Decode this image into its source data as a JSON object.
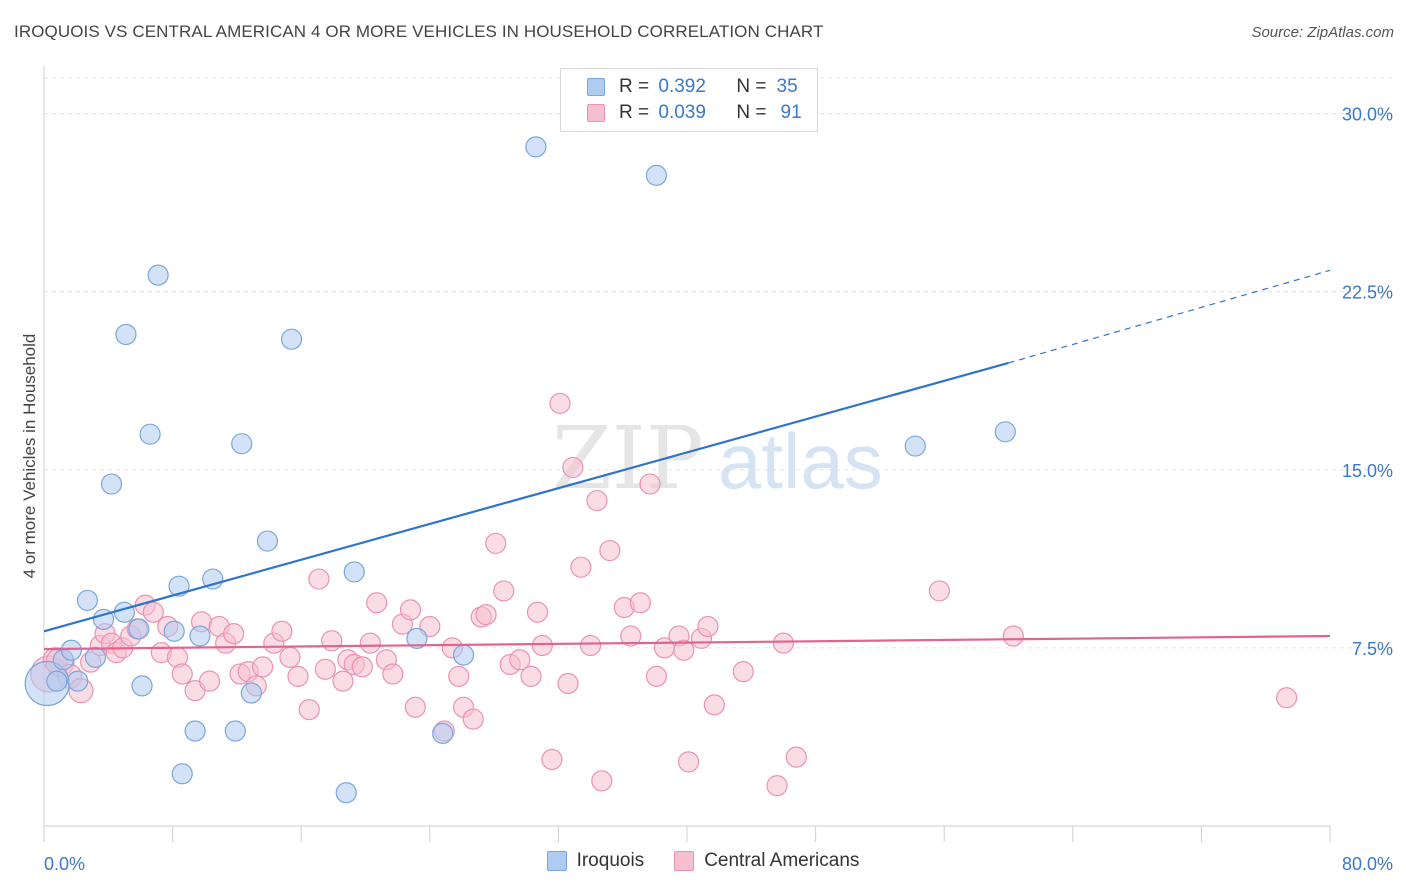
{
  "header": {
    "title": "IROQUOIS VS CENTRAL AMERICAN 4 OR MORE VEHICLES IN HOUSEHOLD CORRELATION CHART",
    "source": "Source: ZipAtlas.com"
  },
  "watermark": {
    "zip": "ZIP",
    "atlas": "atlas"
  },
  "legend": {
    "iroquois": {
      "r_label": "R =",
      "r_value": "0.392",
      "n_label": "N =",
      "n_value": "35"
    },
    "central": {
      "r_label": "R =",
      "r_value": "0.039",
      "n_label": "N =",
      "n_value": "91"
    }
  },
  "colors": {
    "iroquois_fill": "#aecbf0",
    "iroquois_stroke": "#7aa6dc",
    "iroquois_line": "#2f74c8",
    "central_fill": "#f6bfd0",
    "central_stroke": "#ea93b0",
    "central_line": "#e0648f",
    "tick_label": "#3a78c9",
    "grid": "#e3e3e3"
  },
  "chart_data": {
    "type": "scatter",
    "title": "IROQUOIS VS CENTRAL AMERICAN 4 OR MORE VEHICLES IN HOUSEHOLD CORRELATION CHART",
    "xlabel": "",
    "ylabel": "4 or more Vehicles in Household",
    "xlim": [
      0,
      80
    ],
    "ylim": [
      0,
      31.5
    ],
    "x_tick_labels": [
      "0.0%",
      "80.0%"
    ],
    "y_ticks": [
      7.5,
      15.0,
      22.5,
      30.0
    ],
    "y_tick_labels": [
      "7.5%",
      "15.0%",
      "22.5%",
      "30.0%"
    ],
    "grid": "horizontal dashed",
    "legend_position": "top-center and bottom",
    "series": [
      {
        "name": "Iroquois",
        "r": 0.392,
        "n": 35,
        "trend": {
          "x0": 0,
          "y0": 8.2,
          "x1": 60,
          "y1": 19.5,
          "dashed_to_x": 80,
          "dashed_to_y": 23.4
        },
        "points": [
          [
            0.2,
            6.0,
            22
          ],
          [
            0.8,
            6.1,
            10
          ],
          [
            1.2,
            7.0,
            10
          ],
          [
            1.7,
            7.4,
            10
          ],
          [
            2.1,
            6.1,
            10
          ],
          [
            2.7,
            9.5,
            10
          ],
          [
            3.2,
            7.1,
            10
          ],
          [
            3.7,
            8.7,
            10
          ],
          [
            4.2,
            14.4,
            10
          ],
          [
            5.0,
            9.0,
            10
          ],
          [
            5.1,
            20.7,
            10
          ],
          [
            5.9,
            8.3,
            10
          ],
          [
            6.1,
            5.9,
            10
          ],
          [
            6.6,
            16.5,
            10
          ],
          [
            7.1,
            23.2,
            10
          ],
          [
            8.1,
            8.2,
            10
          ],
          [
            8.4,
            10.1,
            10
          ],
          [
            8.6,
            2.2,
            10
          ],
          [
            9.4,
            4.0,
            10
          ],
          [
            9.7,
            8.0,
            10
          ],
          [
            10.5,
            10.4,
            10
          ],
          [
            11.9,
            4.0,
            10
          ],
          [
            12.3,
            16.1,
            10
          ],
          [
            12.9,
            5.6,
            10
          ],
          [
            13.9,
            12.0,
            10
          ],
          [
            15.4,
            20.5,
            10
          ],
          [
            18.8,
            1.4,
            10
          ],
          [
            19.3,
            10.7,
            10
          ],
          [
            23.2,
            7.9,
            10
          ],
          [
            24.8,
            3.9,
            10
          ],
          [
            26.1,
            7.2,
            10
          ],
          [
            30.6,
            28.6,
            10
          ],
          [
            38.1,
            27.4,
            10
          ],
          [
            54.2,
            16.0,
            10
          ],
          [
            59.8,
            16.6,
            10
          ]
        ]
      },
      {
        "name": "Central Americans",
        "r": 0.039,
        "n": 91,
        "trend": {
          "x0": 0,
          "y0": 7.45,
          "x1": 80,
          "y1": 8.0
        },
        "points": [
          [
            0.3,
            6.4,
            18
          ],
          [
            0.7,
            7.0,
            12
          ],
          [
            1.0,
            6.9,
            14
          ],
          [
            1.6,
            6.3,
            12
          ],
          [
            2.3,
            5.7,
            12
          ],
          [
            2.9,
            6.9,
            10
          ],
          [
            3.5,
            7.6,
            10
          ],
          [
            3.8,
            8.1,
            10
          ],
          [
            4.2,
            7.7,
            10
          ],
          [
            4.5,
            7.3,
            10
          ],
          [
            4.9,
            7.5,
            10
          ],
          [
            5.4,
            8.0,
            10
          ],
          [
            5.8,
            8.3,
            10
          ],
          [
            6.3,
            9.3,
            10
          ],
          [
            6.8,
            9.0,
            10
          ],
          [
            7.3,
            7.3,
            10
          ],
          [
            7.7,
            8.4,
            10
          ],
          [
            8.3,
            7.1,
            10
          ],
          [
            8.6,
            6.4,
            10
          ],
          [
            9.4,
            5.7,
            10
          ],
          [
            9.8,
            8.6,
            10
          ],
          [
            10.3,
            6.1,
            10
          ],
          [
            10.9,
            8.4,
            10
          ],
          [
            11.3,
            7.7,
            10
          ],
          [
            11.8,
            8.1,
            10
          ],
          [
            12.2,
            6.4,
            10
          ],
          [
            12.7,
            6.5,
            10
          ],
          [
            13.2,
            5.9,
            10
          ],
          [
            13.6,
            6.7,
            10
          ],
          [
            14.3,
            7.7,
            10
          ],
          [
            14.8,
            8.2,
            10
          ],
          [
            15.3,
            7.1,
            10
          ],
          [
            15.8,
            6.3,
            10
          ],
          [
            16.5,
            4.9,
            10
          ],
          [
            17.1,
            10.4,
            10
          ],
          [
            17.5,
            6.6,
            10
          ],
          [
            17.9,
            7.8,
            10
          ],
          [
            18.6,
            6.1,
            10
          ],
          [
            18.9,
            7.0,
            10
          ],
          [
            19.3,
            6.8,
            10
          ],
          [
            19.8,
            6.7,
            10
          ],
          [
            20.3,
            7.7,
            10
          ],
          [
            20.7,
            9.4,
            10
          ],
          [
            21.3,
            7.0,
            10
          ],
          [
            21.7,
            6.4,
            10
          ],
          [
            22.3,
            8.5,
            10
          ],
          [
            22.8,
            9.1,
            10
          ],
          [
            23.1,
            5.0,
            10
          ],
          [
            24.0,
            8.4,
            10
          ],
          [
            24.9,
            4.0,
            10
          ],
          [
            25.4,
            7.5,
            10
          ],
          [
            25.8,
            6.3,
            10
          ],
          [
            26.1,
            5.0,
            10
          ],
          [
            26.7,
            4.5,
            10
          ],
          [
            27.2,
            8.8,
            10
          ],
          [
            27.5,
            8.9,
            10
          ],
          [
            28.1,
            11.9,
            10
          ],
          [
            28.6,
            9.9,
            10
          ],
          [
            29.0,
            6.8,
            10
          ],
          [
            29.6,
            7.0,
            10
          ],
          [
            30.3,
            6.3,
            10
          ],
          [
            30.7,
            9.0,
            10
          ],
          [
            31.0,
            7.6,
            10
          ],
          [
            31.6,
            2.8,
            10
          ],
          [
            32.1,
            17.8,
            10
          ],
          [
            32.6,
            6.0,
            10
          ],
          [
            32.9,
            15.1,
            10
          ],
          [
            33.4,
            10.9,
            10
          ],
          [
            34.0,
            7.6,
            10
          ],
          [
            34.4,
            13.7,
            10
          ],
          [
            34.7,
            1.9,
            10
          ],
          [
            35.2,
            11.6,
            10
          ],
          [
            36.1,
            9.2,
            10
          ],
          [
            36.5,
            8.0,
            10
          ],
          [
            37.1,
            9.4,
            10
          ],
          [
            37.7,
            14.4,
            10
          ],
          [
            38.1,
            6.3,
            10
          ],
          [
            38.6,
            7.5,
            10
          ],
          [
            39.5,
            8.0,
            10
          ],
          [
            39.8,
            7.4,
            10
          ],
          [
            40.1,
            2.7,
            10
          ],
          [
            40.9,
            7.9,
            10
          ],
          [
            41.3,
            8.4,
            10
          ],
          [
            41.7,
            5.1,
            10
          ],
          [
            43.5,
            6.5,
            10
          ],
          [
            45.6,
            1.7,
            10
          ],
          [
            46.0,
            7.7,
            10
          ],
          [
            46.8,
            2.9,
            10
          ],
          [
            55.7,
            9.9,
            10
          ],
          [
            60.3,
            8.0,
            10
          ],
          [
            77.3,
            5.4,
            10
          ]
        ]
      }
    ]
  }
}
